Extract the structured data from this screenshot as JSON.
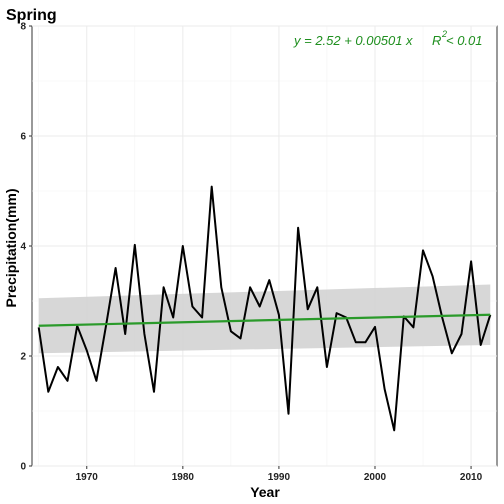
{
  "chart_data": {
    "type": "line",
    "title": "Spring",
    "xlabel": "Year",
    "ylabel": "Precipitation(mm)",
    "xlim": [
      1964.3,
      2012.7
    ],
    "ylim": [
      0,
      8
    ],
    "x_ticks": [
      1970,
      1980,
      1990,
      2000,
      2010
    ],
    "y_ticks": [
      0,
      2,
      4,
      6,
      8
    ],
    "grid": true,
    "colors": {
      "series": "#000000",
      "trend": "#2a9a2a",
      "band": "#d3d3d3",
      "grid": "#ebebeb"
    },
    "series": [
      {
        "x": [
          1965,
          1966,
          1967,
          1968,
          1969,
          1970,
          1971,
          1972,
          1973,
          1974,
          1975,
          1976,
          1977,
          1978,
          1979,
          1980,
          1981,
          1982,
          1983,
          1984,
          1985,
          1986,
          1987,
          1988,
          1989,
          1990,
          1991,
          1992,
          1993,
          1994,
          1995,
          1996,
          1997,
          1998,
          1999,
          2000,
          2001,
          2002,
          2003,
          2004,
          2005,
          2006,
          2007,
          2008,
          2009,
          2010,
          2011,
          2012
        ],
        "y": [
          2.52,
          1.35,
          1.8,
          1.55,
          2.55,
          2.1,
          1.55,
          2.55,
          3.6,
          2.4,
          4.02,
          2.4,
          1.35,
          3.25,
          2.7,
          4.0,
          2.9,
          2.7,
          5.08,
          3.25,
          2.45,
          2.32,
          3.25,
          2.9,
          3.38,
          2.75,
          0.95,
          4.33,
          2.85,
          3.25,
          1.8,
          2.78,
          2.7,
          2.25,
          2.25,
          2.53,
          1.4,
          0.65,
          2.72,
          2.52,
          3.92,
          3.45,
          2.7,
          2.05,
          2.4,
          3.72,
          2.2,
          2.75
        ]
      }
    ],
    "trend": {
      "intercept_label": "y = 2.52 + 0.00501 x",
      "r2_label": "R",
      "r2_sup": "2",
      "r2_value": " < 0.01",
      "x": [
        1965,
        2012
      ],
      "y": [
        2.55,
        2.75
      ],
      "ci_upper": [
        3.05,
        3.3
      ],
      "ci_lower": [
        2.05,
        2.2
      ]
    }
  }
}
